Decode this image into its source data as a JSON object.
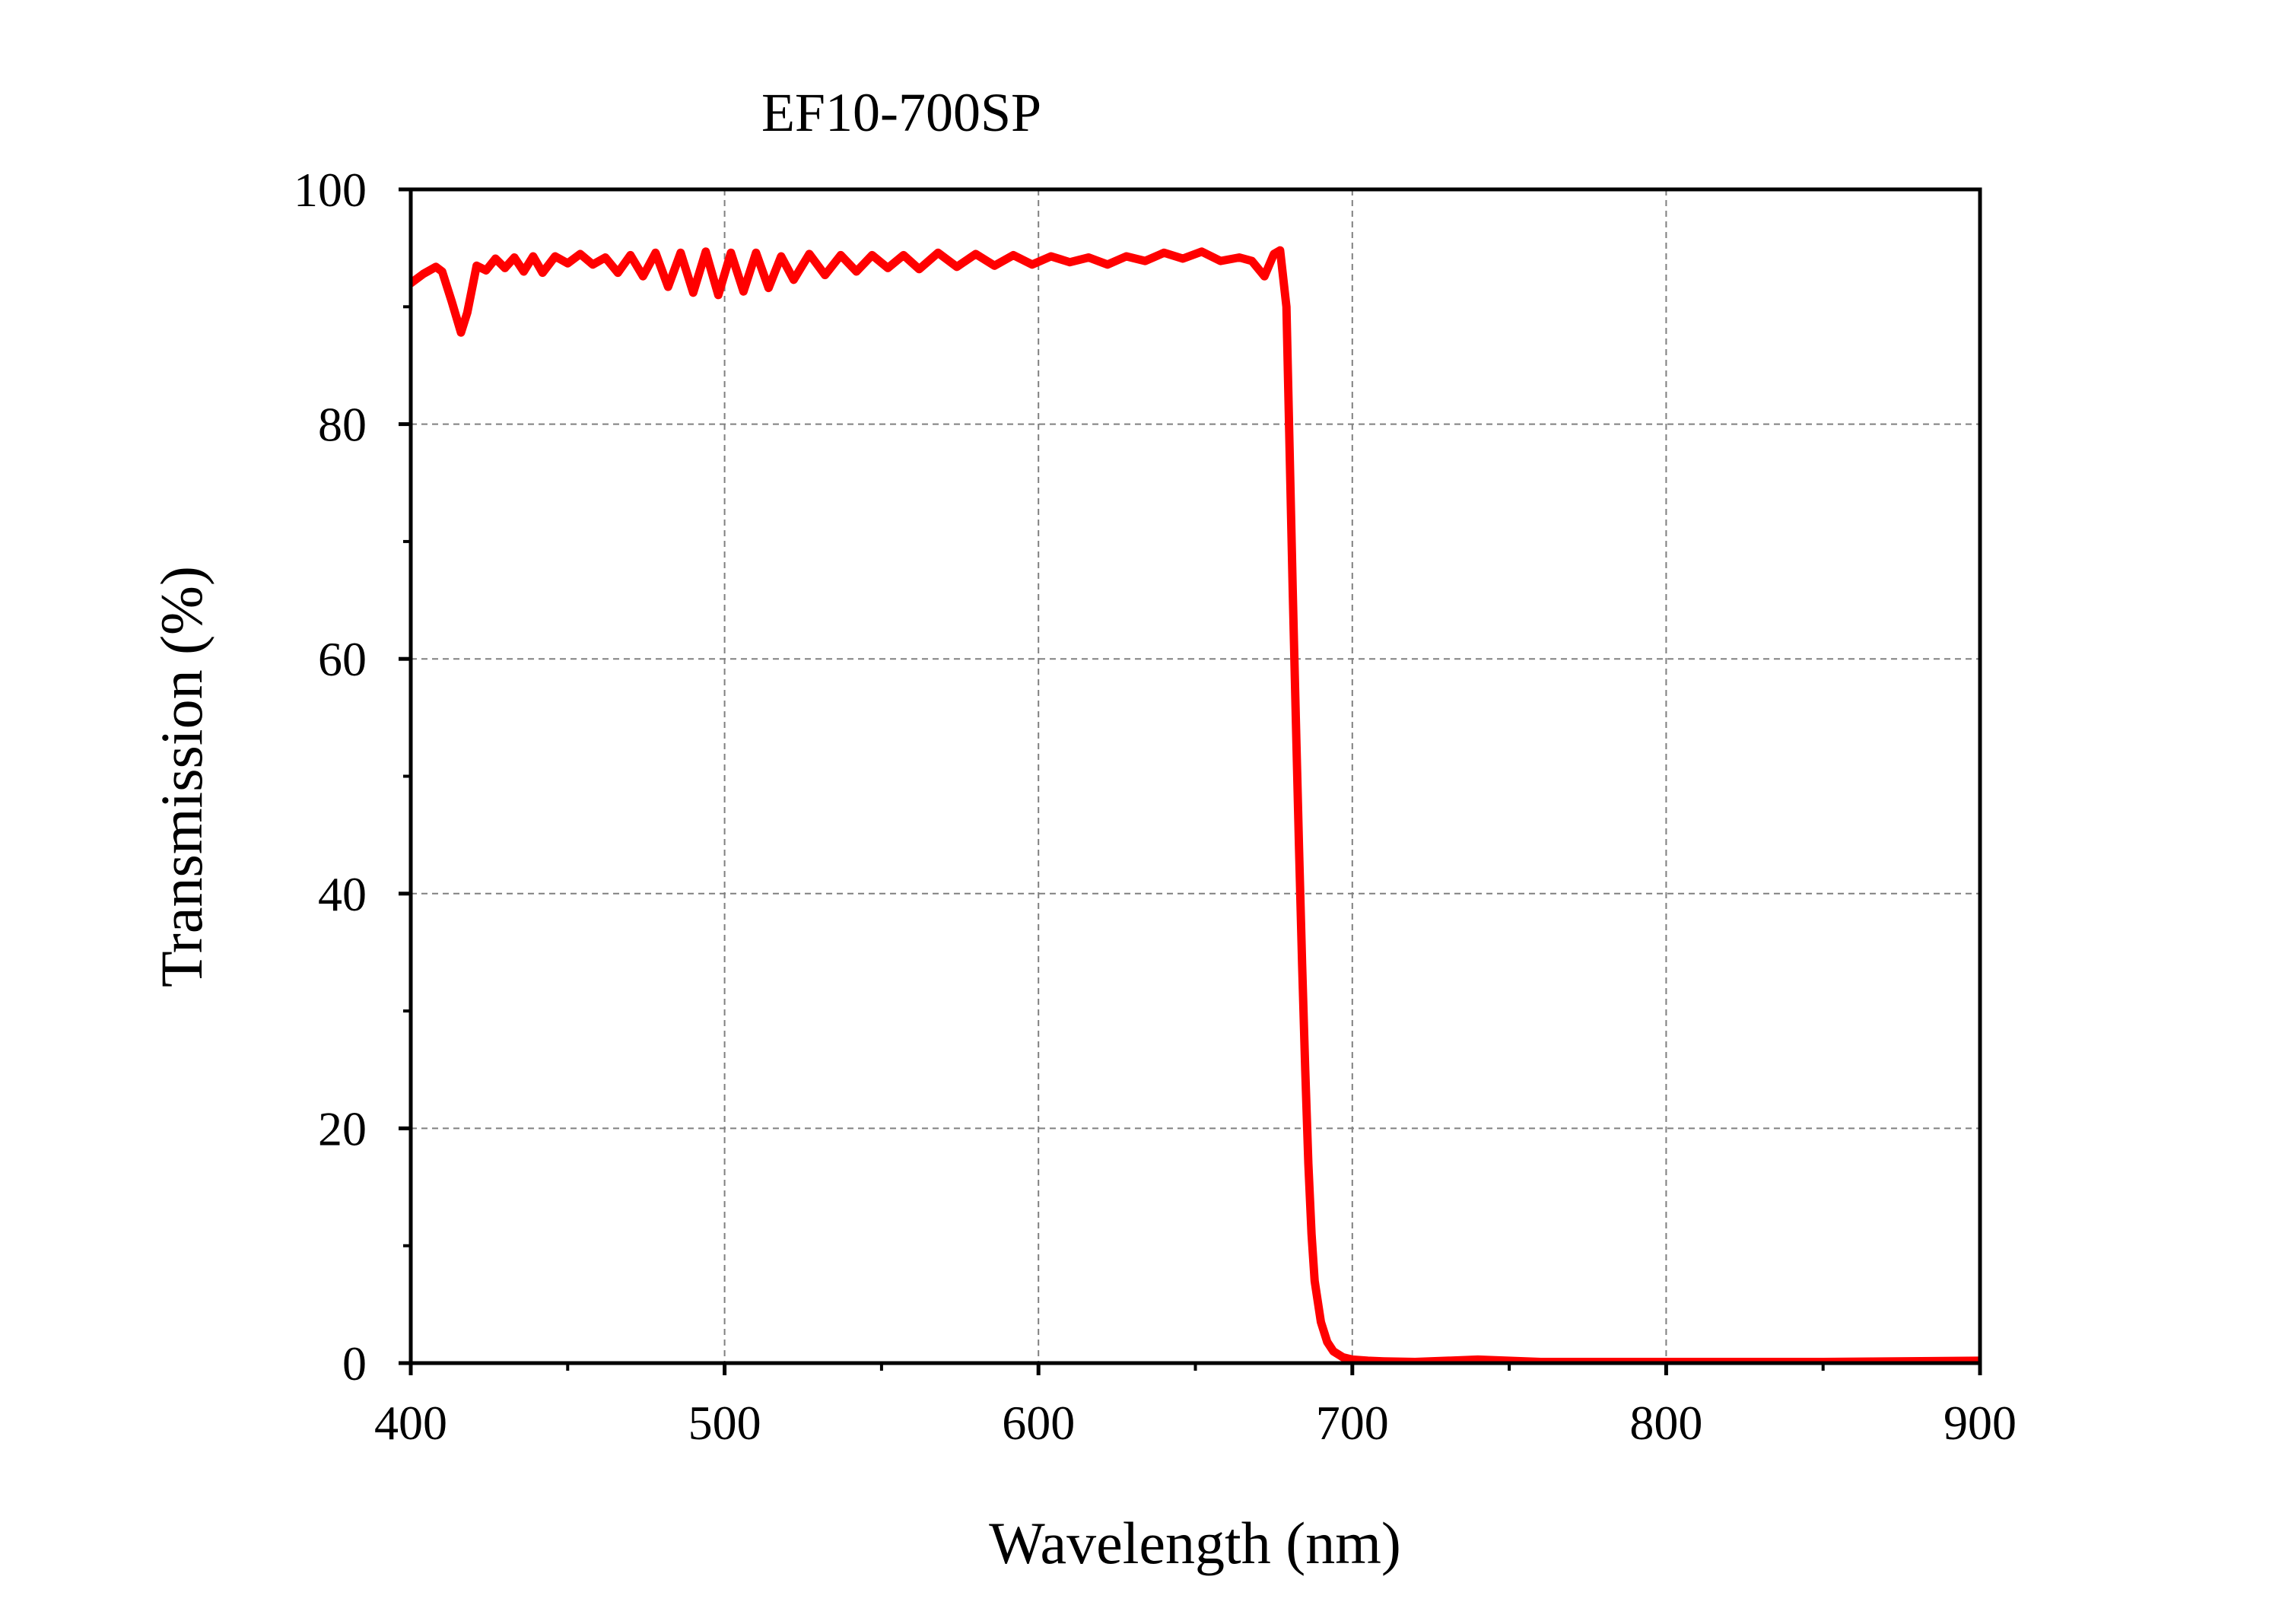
{
  "chart_data": {
    "type": "line",
    "title": "EF10-700SP",
    "xlabel": "Wavelength (nm)",
    "ylabel": "Transmission (%)",
    "xlim": [
      400,
      900
    ],
    "ylim": [
      0,
      100
    ],
    "xticks": [
      400,
      500,
      600,
      700,
      800,
      900
    ],
    "yticks": [
      0,
      20,
      40,
      60,
      80,
      100
    ],
    "x_minor_step": 50,
    "y_minor_step": 10,
    "grid": true,
    "legend": "none",
    "series": [
      {
        "color": "#ff0000",
        "x": [
          400,
          404,
          408,
          410,
          413,
          416,
          418,
          421,
          424,
          427,
          430,
          433,
          436,
          439,
          442,
          446,
          450,
          454,
          458,
          462,
          466,
          470,
          474,
          478,
          482,
          486,
          490,
          494,
          498,
          502,
          506,
          510,
          514,
          518,
          522,
          527,
          532,
          537,
          542,
          547,
          552,
          557,
          562,
          568,
          574,
          580,
          586,
          592,
          598,
          604,
          610,
          616,
          622,
          628,
          634,
          640,
          646,
          652,
          658,
          664,
          668,
          672,
          675,
          677,
          679,
          680,
          681,
          682,
          683,
          684,
          685,
          686,
          687,
          688,
          690,
          692,
          694,
          697,
          700,
          705,
          710,
          720,
          740,
          760,
          800,
          850,
          900
        ],
        "y": [
          92.0,
          92.8,
          93.4,
          93.0,
          90.5,
          87.8,
          89.5,
          93.5,
          93.1,
          94.1,
          93.3,
          94.2,
          93.0,
          94.3,
          92.9,
          94.3,
          93.7,
          94.5,
          93.6,
          94.2,
          92.9,
          94.4,
          92.6,
          94.6,
          91.7,
          94.6,
          91.2,
          94.7,
          91.0,
          94.6,
          91.3,
          94.6,
          91.6,
          94.3,
          92.3,
          94.5,
          92.7,
          94.4,
          93.0,
          94.4,
          93.3,
          94.4,
          93.2,
          94.6,
          93.4,
          94.5,
          93.5,
          94.4,
          93.6,
          94.3,
          93.8,
          94.2,
          93.6,
          94.3,
          93.9,
          94.6,
          94.1,
          94.7,
          93.9,
          94.2,
          93.9,
          92.6,
          94.5,
          94.8,
          90.0,
          78.0,
          66.0,
          55.0,
          44.0,
          34.0,
          25.0,
          17.0,
          11.0,
          7.0,
          3.5,
          1.8,
          1.0,
          0.5,
          0.3,
          0.2,
          0.15,
          0.1,
          0.3,
          0.1,
          0.1,
          0.1,
          0.2
        ]
      }
    ]
  }
}
